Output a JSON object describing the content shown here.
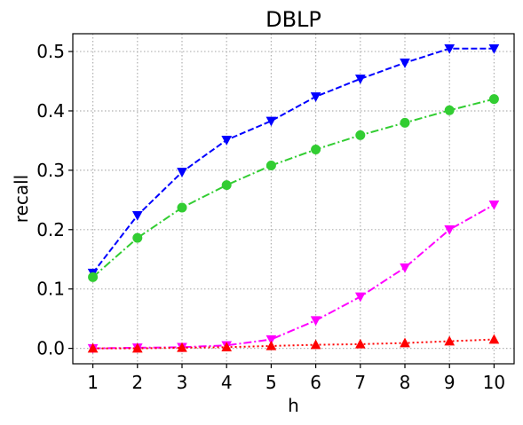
{
  "chart_data": {
    "type": "line",
    "title": "DBLP",
    "xlabel": "h",
    "ylabel": "recall",
    "x": [
      1,
      2,
      3,
      4,
      5,
      6,
      7,
      8,
      9,
      10
    ],
    "xticks": [
      "1",
      "2",
      "3",
      "4",
      "5",
      "6",
      "7",
      "8",
      "9",
      "10"
    ],
    "yticks": [
      "0.0",
      "0.1",
      "0.2",
      "0.3",
      "0.4",
      "0.5"
    ],
    "ytick_values": [
      0.0,
      0.1,
      0.2,
      0.3,
      0.4,
      0.5
    ],
    "xlim": [
      0.55,
      10.45
    ],
    "ylim": [
      -0.026,
      0.53
    ],
    "grid": true,
    "series": [
      {
        "color": "#0000ff",
        "line_style": "dashed",
        "marker": "triangle-down",
        "values": [
          0.127,
          0.224,
          0.297,
          0.351,
          0.383,
          0.424,
          0.454,
          0.481,
          0.505,
          0.505
        ]
      },
      {
        "color": "#32cd32",
        "line_style": "dash-dot",
        "marker": "circle",
        "values": [
          0.12,
          0.186,
          0.237,
          0.275,
          0.308,
          0.335,
          0.359,
          0.38,
          0.401,
          0.42
        ]
      },
      {
        "color": "#ff00ff",
        "line_style": "dash-dot",
        "marker": "triangle-down",
        "values": [
          0.0,
          0.001,
          0.002,
          0.005,
          0.015,
          0.047,
          0.087,
          0.136,
          0.2,
          0.242
        ]
      },
      {
        "color": "#ff0000",
        "line_style": "dotted",
        "marker": "triangle-up",
        "values": [
          0.0,
          0.0,
          0.001,
          0.002,
          0.004,
          0.006,
          0.007,
          0.009,
          0.012,
          0.015
        ]
      }
    ]
  }
}
